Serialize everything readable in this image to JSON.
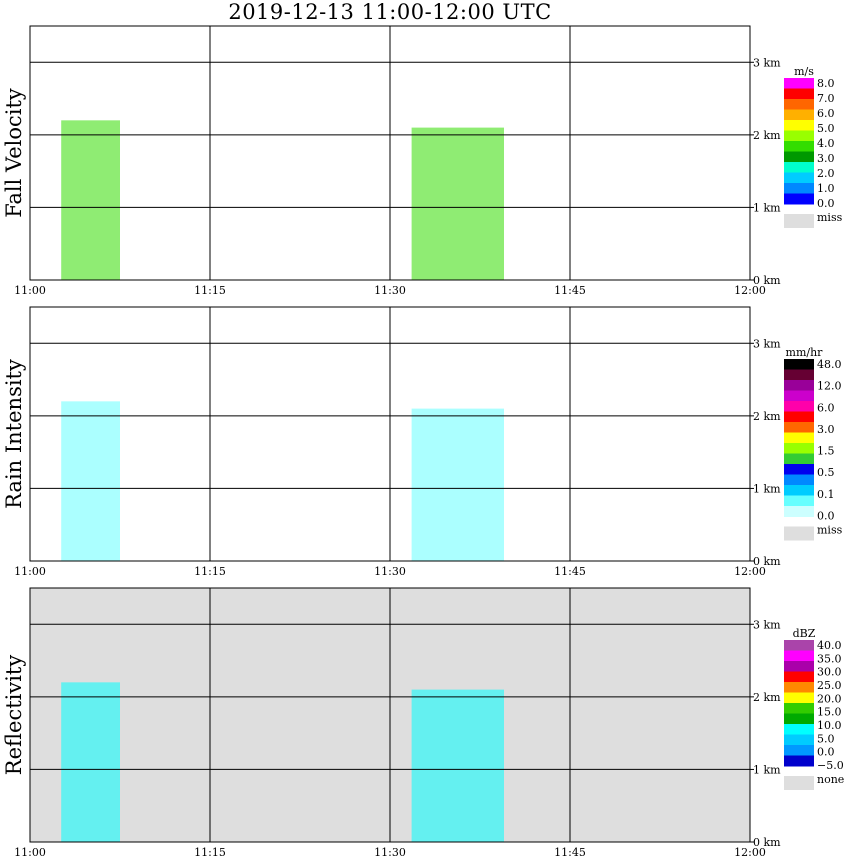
{
  "title": "2019-12-13   11:00-12:00 UTC",
  "colors": {
    "axis": "#000000",
    "missing_background": "#dedede",
    "plot_background_default": "#ffffff"
  },
  "x_axis": {
    "ticks": [
      "11:00",
      "11:15",
      "11:30",
      "11:45",
      "12:00"
    ],
    "range_minutes": [
      0,
      60
    ]
  },
  "y_axis": {
    "ticks": [
      "0 km",
      "1 km",
      "2 km",
      "3 km"
    ],
    "range_km": [
      0,
      3.5
    ]
  },
  "chart_data": [
    {
      "type": "heatmap",
      "ylabel": "Fall Velocity",
      "legend": {
        "unit": "m/s",
        "labels": [
          "8.0",
          "7.0",
          "6.0",
          "5.0",
          "4.0",
          "3.0",
          "2.0",
          "1.0",
          "0.0"
        ],
        "colors": [
          "#ff00ff",
          "#ff0000",
          "#ff6600",
          "#ffb000",
          "#ffff00",
          "#99ff00",
          "#33dd00",
          "#009900",
          "#00ffcc",
          "#00ccff",
          "#0088ff",
          "#0000ff"
        ],
        "missing_label": "miss"
      },
      "background": "#ffffff",
      "cells": [
        {
          "t0": 2.6,
          "t1": 7.5,
          "h0": 0.0,
          "h1": 2.2,
          "color": "#33dd00"
        },
        {
          "t0": 31.8,
          "t1": 39.5,
          "h0": 0.0,
          "h1": 2.1,
          "color": "#33dd00"
        }
      ]
    },
    {
      "type": "heatmap",
      "ylabel": "Rain Intensity",
      "legend": {
        "unit": "mm/hr",
        "labels": [
          "48.0",
          "12.0",
          "6.0",
          "3.0",
          "1.5",
          "0.5",
          "0.1",
          "0.0"
        ],
        "colors": [
          "#000000",
          "#660033",
          "#990099",
          "#cc00cc",
          "#ff00aa",
          "#ff0000",
          "#ff6600",
          "#ffff00",
          "#99ff00",
          "#33cc33",
          "#0000ee",
          "#0088ff",
          "#00ccff",
          "#66ffff",
          "#ccffff"
        ],
        "missing_label": "miss"
      },
      "background": "#ffffff",
      "cells": [
        {
          "t0": 2.6,
          "t1": 7.5,
          "h0": 0.0,
          "h1": 2.2,
          "color": "#66ffff"
        },
        {
          "t0": 31.8,
          "t1": 39.5,
          "h0": 0.0,
          "h1": 2.1,
          "color": "#66ffff"
        }
      ]
    },
    {
      "type": "heatmap",
      "ylabel": "Reflectivity",
      "legend": {
        "unit": "dBZ",
        "labels": [
          "40.0",
          "35.0",
          "30.0",
          "25.0",
          "20.0",
          "15.0",
          "10.0",
          "5.0",
          "0.0",
          "−5.0"
        ],
        "colors": [
          "#aa44aa",
          "#ff00ff",
          "#aa00aa",
          "#ff0000",
          "#ff8800",
          "#ffff00",
          "#33cc00",
          "#00aa00",
          "#00ffff",
          "#00ccff",
          "#0099ff",
          "#0000cc"
        ],
        "missing_label": "none"
      },
      "background": "#dedede",
      "cells": [
        {
          "t0": 2.6,
          "t1": 7.5,
          "h0": 0.0,
          "h1": 2.2,
          "color": "#00ffff"
        },
        {
          "t0": 31.8,
          "t1": 39.5,
          "h0": 0.0,
          "h1": 2.1,
          "color": "#00ffff"
        }
      ]
    }
  ]
}
